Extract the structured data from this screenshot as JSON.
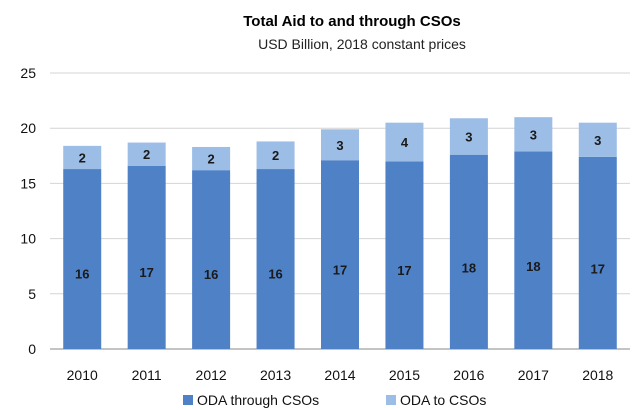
{
  "chart_data": {
    "type": "bar",
    "stacked": true,
    "title": "Total Aid to and through CSOs",
    "subtitle": "USD Billion, 2018 constant prices",
    "xlabel": "",
    "ylabel": "",
    "ylim": [
      0,
      25
    ],
    "yticks": [
      "0",
      "5",
      "10",
      "15",
      "20",
      "25"
    ],
    "grid": true,
    "legend_position": "bottom",
    "categories": [
      "2010",
      "2011",
      "2012",
      "2013",
      "2014",
      "2015",
      "2016",
      "2017",
      "2018"
    ],
    "series": [
      {
        "name": "ODA through CSOs",
        "color": "#4f81c7",
        "values": [
          16.3,
          16.6,
          16.2,
          16.3,
          17.1,
          17.0,
          17.6,
          17.9,
          17.4
        ],
        "labels": [
          "16",
          "17",
          "16",
          "16",
          "17",
          "17",
          "18",
          "18",
          "17"
        ]
      },
      {
        "name": "ODA to CSOs",
        "color": "#9cbde6",
        "values": [
          2.1,
          2.1,
          2.1,
          2.5,
          2.8,
          3.5,
          3.3,
          3.1,
          3.1
        ],
        "labels": [
          "2",
          "2",
          "2",
          "2",
          "3",
          "4",
          "3",
          "3",
          "3"
        ]
      }
    ]
  }
}
